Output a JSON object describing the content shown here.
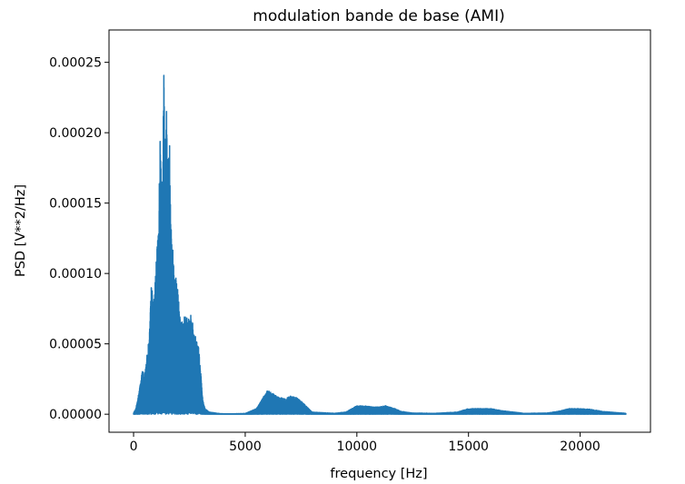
{
  "chart_data": {
    "type": "line",
    "title": "modulation bande de base (AMI)",
    "xlabel": "frequency [Hz]",
    "ylabel": "PSD [V**2/Hz]",
    "xlim": [
      -1100,
      23150
    ],
    "ylim": [
      -1.28e-05,
      0.000273
    ],
    "xticks": [
      0,
      5000,
      10000,
      15000,
      20000
    ],
    "xtick_labels": [
      "0",
      "5000",
      "10000",
      "15000",
      "20000"
    ],
    "yticks": [
      0,
      5e-05,
      0.0001,
      0.00015,
      0.0002,
      0.00025
    ],
    "ytick_labels": [
      "0.00000",
      "0.00005",
      "0.00010",
      "0.00015",
      "0.00020",
      "0.00025"
    ],
    "grid": false,
    "legend": "none",
    "colors": {
      "series": "#1f77b4"
    },
    "series": [
      {
        "x": [
          0,
          100,
          200,
          300,
          400,
          500,
          600,
          700,
          800,
          900,
          1000,
          1100,
          1200,
          1300,
          1350,
          1400,
          1450,
          1500,
          1550,
          1600,
          1700,
          1800,
          1900,
          2000,
          2100,
          2200,
          2300,
          2400,
          2500,
          2600,
          2700,
          2800,
          2900,
          3000,
          3100,
          3200,
          3400,
          3600,
          3800,
          4000,
          4500,
          5000,
          5500,
          5800,
          6000,
          6200,
          6500,
          6800,
          7000,
          7300,
          7600,
          8000,
          9000,
          9500,
          10000,
          10300,
          10800,
          11300,
          11700,
          12000,
          12500,
          13500,
          14500,
          15000,
          15500,
          16000,
          16500,
          17500,
          18500,
          19000,
          19500,
          20000,
          20500,
          21000,
          22050
        ],
        "y": [
          8e-07,
          4e-06,
          1.2e-05,
          2.2e-05,
          3.2e-05,
          2.8e-05,
          4.2e-05,
          5.5e-05,
          9.4e-05,
          8e-05,
          0.000105,
          0.00013,
          0.000205,
          0.000145,
          0.000255,
          0.00019,
          0.00023,
          0.00021,
          0.00016,
          0.000205,
          0.00013,
          0.00011,
          0.0001,
          9.2e-05,
          6.5e-05,
          6.7e-05,
          7.2e-05,
          7e-05,
          7.1e-05,
          7e-05,
          6e-05,
          5.4e-05,
          5e-05,
          3.2e-05,
          1e-05,
          4e-06,
          1.5e-06,
          1e-06,
          5e-07,
          3e-07,
          3e-07,
          5e-07,
          4e-06,
          1.2e-05,
          1.7e-05,
          1.5e-05,
          1.2e-05,
          1.1e-05,
          1.3e-05,
          1.2e-05,
          8e-06,
          1.5e-06,
          6e-07,
          1.5e-06,
          6e-06,
          6e-06,
          5e-06,
          6e-06,
          4e-06,
          2e-06,
          8e-07,
          6e-07,
          1.5e-06,
          4e-06,
          4e-06,
          4e-06,
          2.5e-06,
          6e-07,
          8e-07,
          2e-06,
          4e-06,
          4e-06,
          3.5e-06,
          2e-06,
          6e-07
        ]
      }
    ]
  }
}
